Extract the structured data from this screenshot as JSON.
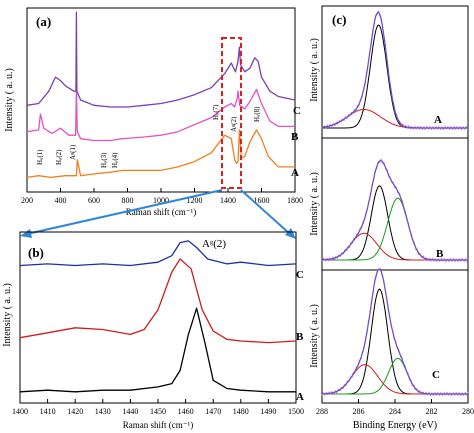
{
  "chart_data": [
    {
      "panel": "(a)",
      "type": "line",
      "xlabel": "Raman shift (cm⁻¹)",
      "ylabel": "Intensity ( a. u.)",
      "xlim": [
        200,
        1800
      ],
      "x_ticks": [
        200,
        400,
        600,
        800,
        1000,
        1200,
        1400,
        1600,
        1800
      ],
      "x_tick_labels": [
        "200",
        "400",
        "600",
        "800",
        "1000",
        "1200",
        "1400",
        "1600",
        "1800"
      ],
      "grid": false,
      "annotations": [
        "Hᵤ(1)",
        "Hᵤ(2)",
        "Aᵍ(1)",
        "Hᵤ(3)",
        "Hᵤ(4)",
        "Hᵤ(7)",
        "Aᵍ(2)",
        "Hᵤ(8)"
      ],
      "series": [
        {
          "name": "A",
          "color": "#f07f1e",
          "x": [
            200,
            270,
            340,
            430,
            495,
            500,
            520,
            600,
            700,
            770,
            900,
            1000,
            1100,
            1200,
            1300,
            1380,
            1420,
            1440,
            1450,
            1460,
            1468,
            1480,
            1500,
            1530,
            1570,
            1600,
            1640,
            1700,
            1800
          ],
          "y": [
            0.06,
            0.07,
            0.06,
            0.07,
            0.07,
            0.16,
            0.07,
            0.08,
            0.09,
            0.1,
            0.1,
            0.1,
            0.12,
            0.15,
            0.2,
            0.3,
            0.28,
            0.16,
            0.14,
            0.15,
            0.33,
            0.17,
            0.18,
            0.26,
            0.33,
            0.28,
            0.18,
            0.12,
            0.12
          ]
        },
        {
          "name": "B",
          "color": "#e052c9",
          "x": [
            200,
            270,
            280,
            300,
            350,
            400,
            450,
            490,
            495,
            500,
            520,
            600,
            700,
            770,
            900,
            1000,
            1100,
            1200,
            1300,
            1380,
            1420,
            1440,
            1455,
            1460,
            1470,
            1500,
            1530,
            1570,
            1600,
            1650,
            1700,
            1800
          ],
          "y": [
            0.32,
            0.33,
            0.42,
            0.34,
            0.31,
            0.34,
            0.3,
            0.3,
            0.56,
            0.32,
            0.28,
            0.27,
            0.27,
            0.28,
            0.29,
            0.3,
            0.32,
            0.36,
            0.4,
            0.46,
            0.48,
            0.46,
            0.51,
            0.55,
            0.47,
            0.45,
            0.49,
            0.56,
            0.48,
            0.38,
            0.35,
            0.35
          ]
        },
        {
          "name": "C",
          "color": "#7b3fb3",
          "x": [
            200,
            270,
            330,
            370,
            400,
            430,
            480,
            492,
            495,
            498,
            520,
            600,
            700,
            800,
            900,
            1000,
            1100,
            1200,
            1300,
            1380,
            1420,
            1445,
            1460,
            1468,
            1475,
            1500,
            1530,
            1560,
            1580,
            1600,
            1650,
            1700,
            1800
          ],
          "y": [
            0.47,
            0.48,
            0.55,
            0.63,
            0.61,
            0.58,
            0.55,
            0.55,
            1.0,
            0.55,
            0.5,
            0.47,
            0.46,
            0.46,
            0.47,
            0.48,
            0.5,
            0.53,
            0.57,
            0.65,
            0.71,
            0.66,
            0.72,
            0.8,
            0.7,
            0.66,
            0.68,
            0.74,
            0.72,
            0.63,
            0.55,
            0.52,
            0.5
          ]
        }
      ]
    },
    {
      "panel": "(b)",
      "type": "line",
      "xlabel": "Raman shift (cm⁻¹)",
      "ylabel": "Intensity ( a. u.)",
      "xlim": [
        1400,
        1500
      ],
      "x_ticks": [
        1400,
        1410,
        1420,
        1430,
        1440,
        1450,
        1460,
        1470,
        1480,
        1490,
        1500
      ],
      "x_tick_labels": [
        "1400",
        "1410",
        "1420",
        "1430",
        "1440",
        "1450",
        "1460",
        "1470",
        "1480",
        "1490",
        "1500"
      ],
      "grid": false,
      "annotation": "Aᵍ(2)",
      "series": [
        {
          "name": "A",
          "color": "#000000",
          "x": [
            1400,
            1410,
            1420,
            1430,
            1440,
            1450,
            1455,
            1458,
            1461,
            1464,
            1467,
            1470,
            1475,
            1480,
            1490,
            1500
          ],
          "y": [
            0.05,
            0.06,
            0.05,
            0.06,
            0.06,
            0.08,
            0.1,
            0.18,
            0.4,
            0.56,
            0.35,
            0.12,
            0.07,
            0.06,
            0.05,
            0.05
          ]
        },
        {
          "name": "B",
          "color": "#d01c1c",
          "x": [
            1400,
            1410,
            1420,
            1430,
            1440,
            1445,
            1450,
            1455,
            1458,
            1462,
            1466,
            1470,
            1475,
            1480,
            1490,
            1500
          ],
          "y": [
            0.38,
            0.41,
            0.44,
            0.43,
            0.4,
            0.43,
            0.55,
            0.78,
            0.86,
            0.8,
            0.55,
            0.42,
            0.37,
            0.36,
            0.35,
            0.36
          ]
        },
        {
          "name": "C",
          "color": "#1e2ea8",
          "x": [
            1400,
            1410,
            1420,
            1430,
            1440,
            1450,
            1455,
            1458,
            1461,
            1464,
            1468,
            1475,
            1480,
            1490,
            1500
          ],
          "y": [
            0.82,
            0.83,
            0.82,
            0.83,
            0.82,
            0.84,
            0.88,
            0.96,
            0.97,
            0.93,
            0.86,
            0.83,
            0.84,
            0.82,
            0.83
          ]
        }
      ]
    },
    {
      "panel": "(c)",
      "type": "line",
      "xlabel": "Binding Energy (eV)",
      "ylabel": "Intensity ( a. u.)",
      "xlim": [
        288,
        280
      ],
      "x_reversed": true,
      "x_ticks": [
        288,
        286,
        284,
        282,
        280
      ],
      "x_tick_labels": [
        "288",
        "286",
        "284",
        "282",
        "280"
      ],
      "grid": false,
      "subpanels": [
        {
          "label": "A",
          "components": [
            {
              "center": 284.9,
              "height": 1.0,
              "width": 0.45,
              "color": "#000000"
            },
            {
              "center": 285.7,
              "height": 0.18,
              "width": 0.9,
              "color": "#d01c1c"
            }
          ]
        },
        {
          "label": "B",
          "components": [
            {
              "center": 284.85,
              "height": 0.72,
              "width": 0.45,
              "color": "#000000"
            },
            {
              "center": 285.7,
              "height": 0.26,
              "width": 0.7,
              "color": "#d01c1c"
            },
            {
              "center": 283.85,
              "height": 0.6,
              "width": 0.55,
              "color": "#1a9a1a"
            }
          ]
        },
        {
          "label": "C",
          "components": [
            {
              "center": 284.85,
              "height": 1.0,
              "width": 0.45,
              "color": "#000000"
            },
            {
              "center": 285.65,
              "height": 0.28,
              "width": 0.7,
              "color": "#d01c1c"
            },
            {
              "center": 283.85,
              "height": 0.34,
              "width": 0.5,
              "color": "#1a9a1a"
            }
          ]
        }
      ]
    }
  ],
  "colors": {
    "envelope": "#6b4fc8",
    "raw": "#c77bd8",
    "highlight": "#e02020",
    "arrow": "#2f86d8"
  }
}
